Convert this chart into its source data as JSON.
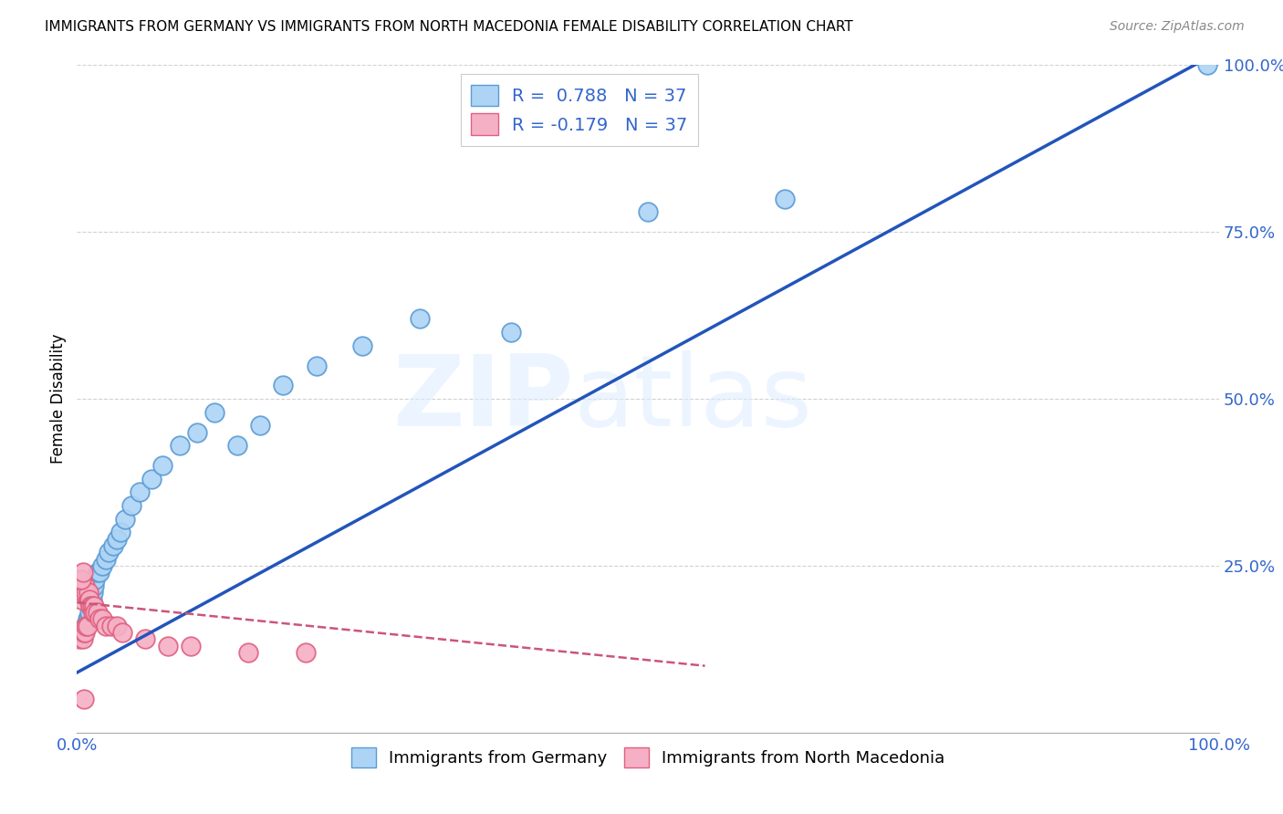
{
  "title": "IMMIGRANTS FROM GERMANY VS IMMIGRANTS FROM NORTH MACEDONIA FEMALE DISABILITY CORRELATION CHART",
  "source": "Source: ZipAtlas.com",
  "ylabel": "Female Disability",
  "xlim": [
    0.0,
    1.0
  ],
  "ylim": [
    0.0,
    1.0
  ],
  "xticks": [
    0.0,
    0.2,
    0.4,
    0.6,
    0.8,
    1.0
  ],
  "yticks": [
    0.25,
    0.5,
    0.75,
    1.0
  ],
  "xtick_labels": [
    "0.0%",
    "",
    "",
    "",
    "",
    "100.0%"
  ],
  "ytick_labels": [
    "25.0%",
    "50.0%",
    "75.0%",
    "100.0%"
  ],
  "germany_color": "#add4f5",
  "germany_edge_color": "#5b9bd5",
  "macedonia_color": "#f5b0c5",
  "macedonia_edge_color": "#e06080",
  "germany_line_color": "#2255bb",
  "macedonia_line_color": "#cc5577",
  "R_germany": 0.788,
  "N_germany": 37,
  "R_macedonia": -0.179,
  "N_macedonia": 37,
  "germany_scatter_x": [
    0.005,
    0.007,
    0.008,
    0.009,
    0.01,
    0.011,
    0.012,
    0.013,
    0.014,
    0.015,
    0.016,
    0.018,
    0.02,
    0.022,
    0.025,
    0.028,
    0.032,
    0.035,
    0.038,
    0.042,
    0.048,
    0.055,
    0.065,
    0.075,
    0.09,
    0.105,
    0.12,
    0.14,
    0.16,
    0.18,
    0.21,
    0.25,
    0.3,
    0.38,
    0.5,
    0.62,
    0.99
  ],
  "germany_scatter_y": [
    0.15,
    0.16,
    0.16,
    0.17,
    0.17,
    0.18,
    0.19,
    0.2,
    0.21,
    0.22,
    0.23,
    0.24,
    0.24,
    0.25,
    0.26,
    0.27,
    0.28,
    0.29,
    0.3,
    0.32,
    0.34,
    0.36,
    0.38,
    0.4,
    0.43,
    0.45,
    0.48,
    0.43,
    0.46,
    0.52,
    0.55,
    0.58,
    0.62,
    0.6,
    0.78,
    0.8,
    1.0
  ],
  "macedonia_scatter_x": [
    0.002,
    0.003,
    0.004,
    0.004,
    0.005,
    0.005,
    0.006,
    0.006,
    0.007,
    0.007,
    0.008,
    0.008,
    0.009,
    0.01,
    0.01,
    0.011,
    0.012,
    0.013,
    0.014,
    0.015,
    0.016,
    0.018,
    0.02,
    0.022,
    0.025,
    0.03,
    0.035,
    0.04,
    0.06,
    0.08,
    0.1,
    0.15,
    0.2,
    0.003,
    0.004,
    0.005,
    0.006
  ],
  "macedonia_scatter_y": [
    0.14,
    0.15,
    0.15,
    0.2,
    0.14,
    0.21,
    0.15,
    0.22,
    0.15,
    0.22,
    0.16,
    0.21,
    0.16,
    0.2,
    0.21,
    0.2,
    0.19,
    0.19,
    0.18,
    0.19,
    0.18,
    0.18,
    0.17,
    0.17,
    0.16,
    0.16,
    0.16,
    0.15,
    0.14,
    0.13,
    0.13,
    0.12,
    0.12,
    0.23,
    0.23,
    0.24,
    0.05
  ],
  "germany_line_x": [
    0.0,
    1.0
  ],
  "germany_line_y": [
    0.09,
    1.02
  ],
  "macedonia_line_x": [
    0.0,
    0.55
  ],
  "macedonia_line_y": [
    0.195,
    0.1
  ],
  "watermark_zip": "ZIP",
  "watermark_atlas": "atlas",
  "background_color": "#ffffff",
  "grid_color": "#cccccc",
  "legend_text_1": "R =  0.788   N = 37",
  "legend_text_2": "R = -0.179   N = 37",
  "legend_label_1": "Immigrants from Germany",
  "legend_label_2": "Immigrants from North Macedonia"
}
